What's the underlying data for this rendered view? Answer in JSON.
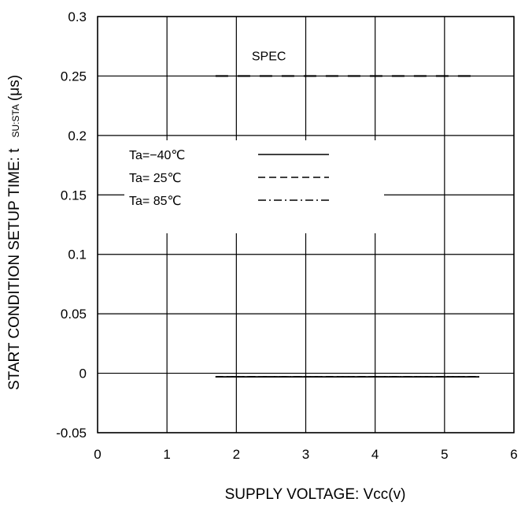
{
  "chart_data": {
    "type": "line",
    "title": "",
    "xlabel": "SUPPLY VOLTAGE: Vcc(v)",
    "ylabel": {
      "main": "START CONDITION SETUP TIME: t",
      "subscript": "SU:STA",
      "unit": "(μs)"
    },
    "xlim": [
      0,
      6
    ],
    "ylim": [
      -0.05,
      0.3
    ],
    "x_ticks": [
      "0",
      "1",
      "2",
      "3",
      "4",
      "5",
      "6"
    ],
    "y_ticks": [
      "-0.05",
      "0",
      "0.05",
      "0.1",
      "0.15",
      "0.2",
      "0.25",
      "0.3"
    ],
    "grid": true,
    "legend_placement": "upper-left",
    "series": [
      {
        "name": "Ta=−40℃",
        "style": "solid",
        "x": [
          1.7,
          5.5
        ],
        "y": [
          -0.003,
          -0.003
        ]
      },
      {
        "name": "Ta= 25℃",
        "style": "dashed",
        "x": [
          1.7,
          5.5
        ],
        "y": [
          -0.003,
          -0.003
        ]
      },
      {
        "name": "Ta= 85℃",
        "style": "dashdot",
        "x": [
          1.7,
          5.5
        ],
        "y": [
          -0.003,
          -0.003
        ]
      }
    ],
    "spec_line": {
      "label": "SPEC",
      "x": [
        1.7,
        5.5
      ],
      "y": 0.25,
      "style": "dashed"
    }
  }
}
